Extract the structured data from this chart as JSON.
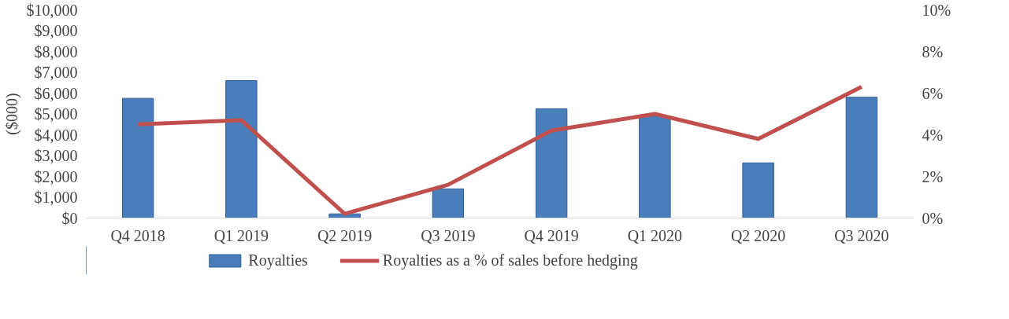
{
  "chart_data": {
    "type": "bar",
    "ylabel": "($000)",
    "categories": [
      "Q4 2018",
      "Q1 2019",
      "Q2 2019",
      "Q3 2019",
      "Q4 2019",
      "Q1 2020",
      "Q2 2020",
      "Q3 2020"
    ],
    "series": [
      {
        "name": "Royalties",
        "color": "#4a7ebb",
        "values": [
          5750,
          6600,
          200,
          1400,
          5250,
          4900,
          2650,
          5800
        ]
      },
      {
        "name": "Royalties as a % of sales before hedging",
        "type": "line",
        "axis": "y2",
        "color": "#c0504d",
        "values": [
          4.5,
          4.7,
          0.2,
          1.6,
          4.2,
          5.0,
          3.8,
          6.3
        ]
      }
    ],
    "ylim": [
      0,
      10000
    ],
    "yticks": [
      {
        "value": 0,
        "label": "$0"
      },
      {
        "value": 1000,
        "label": "$1,000"
      },
      {
        "value": 2000,
        "label": "$2,000"
      },
      {
        "value": 3000,
        "label": "$3,000"
      },
      {
        "value": 4000,
        "label": "$4,000"
      },
      {
        "value": 5000,
        "label": "$5,000"
      },
      {
        "value": 6000,
        "label": "$6,000"
      },
      {
        "value": 7000,
        "label": "$7,000"
      },
      {
        "value": 8000,
        "label": "$8,000"
      },
      {
        "value": 9000,
        "label": "$9,000"
      },
      {
        "value": 10000,
        "label": "$10,000"
      }
    ],
    "y2lim": [
      0,
      10
    ],
    "y2ticks": [
      {
        "value": 0,
        "label": "0%"
      },
      {
        "value": 2,
        "label": "2%"
      },
      {
        "value": 4,
        "label": "4%"
      },
      {
        "value": 6,
        "label": "6%"
      },
      {
        "value": 8,
        "label": "8%"
      },
      {
        "value": 10,
        "label": "10%"
      }
    ],
    "legend": "bottom",
    "grid": false
  }
}
